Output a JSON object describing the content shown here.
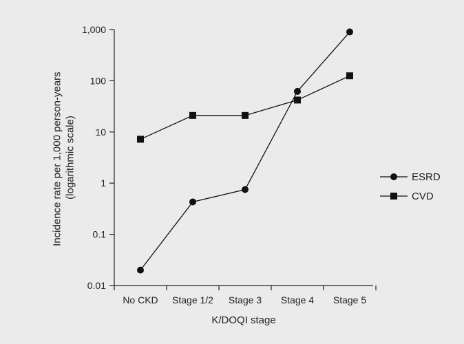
{
  "chart_data": {
    "type": "line",
    "title": "",
    "xlabel": "K/DOQI stage",
    "ylabel": [
      "Incidence rate per 1,000 person-years",
      "(logarithmic scale)"
    ],
    "yscale": "log",
    "ylim": [
      0.01,
      1000
    ],
    "yticks": [
      {
        "value": 0.01,
        "label": "0.01"
      },
      {
        "value": 0.1,
        "label": "0.1"
      },
      {
        "value": 1,
        "label": "1"
      },
      {
        "value": 10,
        "label": "10"
      },
      {
        "value": 100,
        "label": "100"
      },
      {
        "value": 1000,
        "label": "1,000"
      }
    ],
    "categories": [
      "No CKD",
      "Stage 1/2",
      "Stage 3",
      "Stage 4",
      "Stage 5"
    ],
    "grid": false,
    "legend_position": "right",
    "series": [
      {
        "name": "ESRD",
        "marker": "circle",
        "values": [
          0.02,
          0.43,
          0.75,
          62,
          900
        ]
      },
      {
        "name": "CVD",
        "marker": "square",
        "values": [
          7.2,
          21,
          21,
          42,
          125
        ]
      }
    ]
  }
}
